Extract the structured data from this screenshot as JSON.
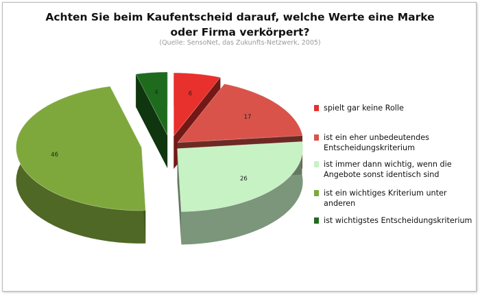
{
  "chart_data": {
    "type": "pie",
    "title": "Achten Sie beim Kaufentscheid darauf, welche Werte eine Marke oder Firma verkörpert?",
    "subtitle": "(Quelle: SensoNet, das Zukunfts-Netzwerk, 2005)",
    "slices": [
      {
        "label": "spielt gar keine Rolle",
        "value": 6,
        "color": "#e8302c"
      },
      {
        "label": "ist ein eher unbedeutendes Entscheidungskriterium",
        "value": 17,
        "color": "#d9534a"
      },
      {
        "label": "ist immer dann wichtig, wenn die Angebote sonst identisch sind",
        "value": 26,
        "color": "#c7f2c4"
      },
      {
        "label": "ist ein wichtiges Kriterium unter anderen",
        "value": 46,
        "color": "#7fa83c"
      },
      {
        "label": "ist wichtigstes Entscheidungskriterium",
        "value": 4,
        "color": "#1e6b1e"
      }
    ],
    "legend_position": "right",
    "style": "3D exploded pie"
  }
}
